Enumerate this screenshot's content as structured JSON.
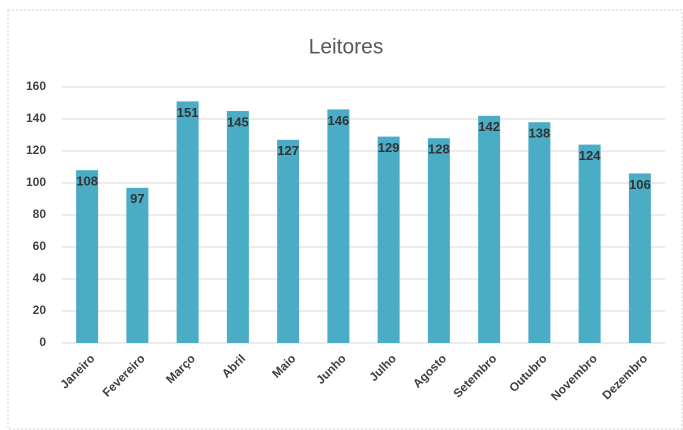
{
  "chart_data": {
    "type": "bar",
    "title": "Leitores",
    "categories": [
      "Janeiro",
      "Fevereiro",
      "Março",
      "Abril",
      "Maio",
      "Junho",
      "Julho",
      "Agosto",
      "Setembro",
      "Outubro",
      "Novembro",
      "Dezembro"
    ],
    "values": [
      108,
      97,
      151,
      145,
      127,
      146,
      129,
      128,
      142,
      138,
      124,
      106
    ],
    "color": "#4bacc6",
    "ylim": [
      0,
      160
    ],
    "yticks": [
      0,
      20,
      40,
      60,
      80,
      100,
      120,
      140,
      160
    ],
    "grid": true
  }
}
